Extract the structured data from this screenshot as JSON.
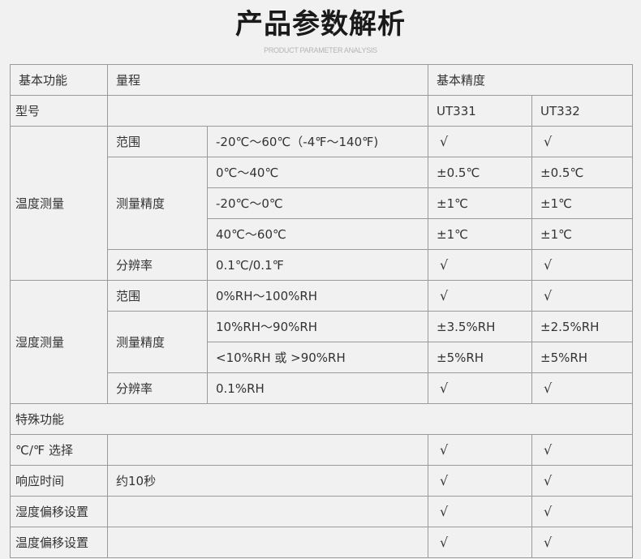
{
  "header": {
    "title": "产品参数解析",
    "subtitle": "PRODUCT PARAMETER ANALYSIS"
  },
  "table": {
    "rows": [
      [
        {
          "t": "基本功能"
        },
        {
          "t": "量程",
          "cs": 2
        },
        {
          "t": "基本精度",
          "cs": 2
        }
      ],
      [
        {
          "t": "型号"
        },
        {
          "t": "",
          "cs": 2
        },
        {
          "t": "UT331"
        },
        {
          "t": "UT332"
        }
      ],
      [
        {
          "t": "温度测量",
          "rs": 5
        },
        {
          "t": "范围"
        },
        {
          "t": "-20℃～60℃（-4℉～140℉)"
        },
        {
          "t": "√"
        },
        {
          "t": "√"
        }
      ],
      [
        {
          "t": "测量精度",
          "rs": 3
        },
        {
          "t": "0℃～40℃"
        },
        {
          "t": "±0.5℃"
        },
        {
          "t": "±0.5℃"
        }
      ],
      [
        {
          "t": "-20℃～0℃"
        },
        {
          "t": "±1℃"
        },
        {
          "t": "±1℃"
        }
      ],
      [
        {
          "t": "40℃～60℃"
        },
        {
          "t": "±1℃"
        },
        {
          "t": "±1℃"
        }
      ],
      [
        {
          "t": "分辨率"
        },
        {
          "t": "0.1℃/0.1℉"
        },
        {
          "t": "√"
        },
        {
          "t": "√"
        }
      ],
      [
        {
          "t": "湿度测量",
          "rs": 4
        },
        {
          "t": "范围"
        },
        {
          "t": "0%RH～100%RH"
        },
        {
          "t": "√"
        },
        {
          "t": "√"
        }
      ],
      [
        {
          "t": "测量精度",
          "rs": 2
        },
        {
          "t": "10%RH～90%RH"
        },
        {
          "t": "±3.5%RH"
        },
        {
          "t": "±2.5%RH"
        }
      ],
      [
        {
          "t": "<10%RH 或 >90%RH"
        },
        {
          "t": "±5%RH"
        },
        {
          "t": "±5%RH"
        }
      ],
      [
        {
          "t": "分辨率"
        },
        {
          "t": "0.1%RH"
        },
        {
          "t": "√"
        },
        {
          "t": "√"
        }
      ],
      [
        {
          "t": "特殊功能",
          "cs": 5
        }
      ],
      [
        {
          "t": "℃/℉ 选择"
        },
        {
          "t": "",
          "cs": 2
        },
        {
          "t": "√"
        },
        {
          "t": "√"
        }
      ],
      [
        {
          "t": "响应时间"
        },
        {
          "t": "约10秒",
          "cs": 2
        },
        {
          "t": "√"
        },
        {
          "t": "√"
        }
      ],
      [
        {
          "t": "湿度偏移设置"
        },
        {
          "t": "",
          "cs": 2
        },
        {
          "t": "√"
        },
        {
          "t": "√"
        }
      ],
      [
        {
          "t": "温度偏移设置"
        },
        {
          "t": "",
          "cs": 2
        },
        {
          "t": "√"
        },
        {
          "t": "√"
        }
      ]
    ]
  }
}
